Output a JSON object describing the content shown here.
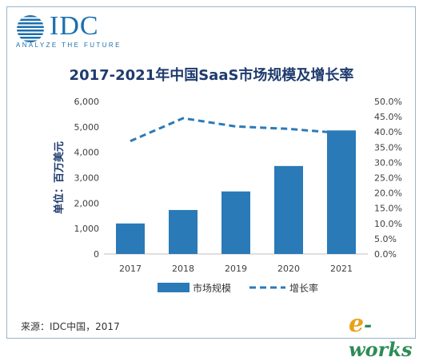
{
  "brand": {
    "name": "IDC",
    "tagline": "ANALYZE THE FUTURE",
    "color": "#1b6fae"
  },
  "chart_data": {
    "type": "bar",
    "title": "2017-2021年中国SaaS市场规模及增长率",
    "ylabel": "单位：百万美元",
    "categories": [
      "2017",
      "2018",
      "2019",
      "2020",
      "2021"
    ],
    "ylim": [
      0,
      6000
    ],
    "y_ticks": [
      "0",
      "1,000",
      "2,000",
      "3,000",
      "4,000",
      "5,000",
      "6,000"
    ],
    "y2lim": [
      0,
      50
    ],
    "y2_ticks": [
      "0.0%",
      "5.0%",
      "10.0%",
      "15.0%",
      "20.0%",
      "25.0%",
      "30.0%",
      "35.0%",
      "40.0%",
      "45.0%",
      "50.0%"
    ],
    "series": [
      {
        "name": "市场规模",
        "type": "bar",
        "axis": "left",
        "color": "#2a7ab8",
        "values": [
          1200,
          1730,
          2460,
          3460,
          4860
        ]
      },
      {
        "name": "增长率",
        "type": "line",
        "axis": "right",
        "style": "dashed",
        "color": "#2a7ab8",
        "values": [
          37.0,
          44.5,
          41.8,
          41.0,
          39.6
        ]
      }
    ],
    "legend_position": "bottom",
    "grid": false
  },
  "source": "来源：IDC中国，2017",
  "watermark": {
    "prefix": "e",
    "rest": "-works"
  }
}
